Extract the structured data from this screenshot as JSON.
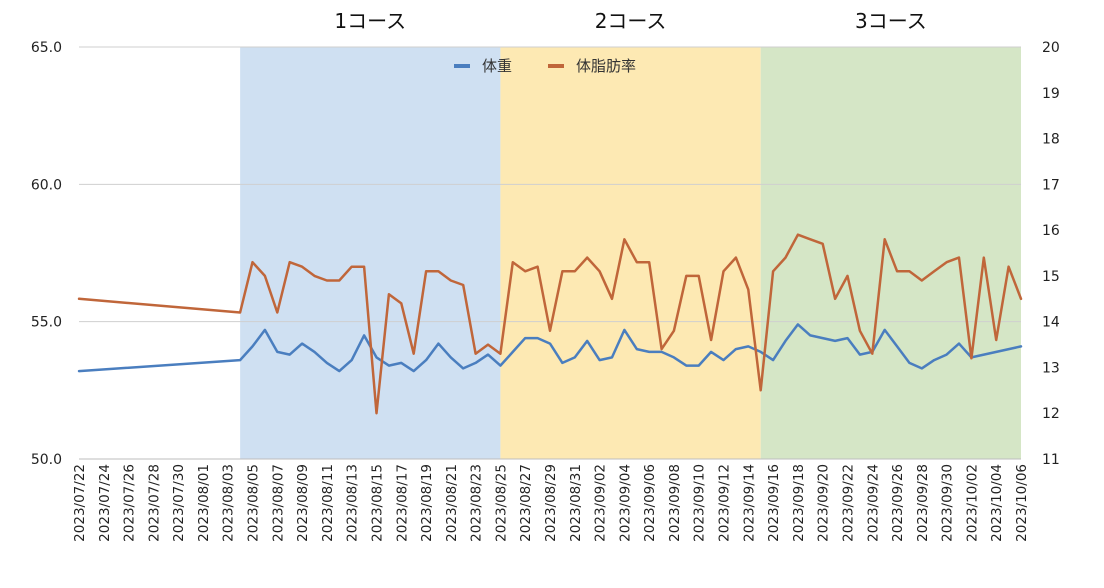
{
  "chart_data": {
    "type": "line",
    "bands": [
      {
        "label": "1コース",
        "from": "2023/08/04",
        "to": "2023/08/25",
        "color": "#cfe0f2"
      },
      {
        "label": "2コース",
        "from": "2023/08/25",
        "to": "2023/09/15",
        "color": "#fde9b3"
      },
      {
        "label": "3コース",
        "from": "2023/09/15",
        "to": "2023/10/06",
        "color": "#d5e6c6"
      }
    ],
    "x_ticks": [
      "2023/07/22",
      "2023/07/24",
      "2023/07/26",
      "2023/07/28",
      "2023/07/30",
      "2023/08/01",
      "2023/08/03",
      "2023/08/05",
      "2023/08/07",
      "2023/08/09",
      "2023/08/11",
      "2023/08/13",
      "2023/08/15",
      "2023/08/17",
      "2023/08/19",
      "2023/08/21",
      "2023/08/23",
      "2023/08/25",
      "2023/08/27",
      "2023/08/29",
      "2023/08/31",
      "2023/09/02",
      "2023/09/04",
      "2023/09/06",
      "2023/09/08",
      "2023/09/10",
      "2023/09/12",
      "2023/09/14",
      "2023/09/16",
      "2023/09/18",
      "2023/09/20",
      "2023/09/22",
      "2023/09/24",
      "2023/09/26",
      "2023/09/28",
      "2023/09/30",
      "2023/10/02",
      "2023/10/04",
      "2023/10/06"
    ],
    "y_left": {
      "min": 50,
      "max": 65,
      "ticks": [
        "50.0",
        "55.0",
        "60.0",
        "65.0"
      ]
    },
    "y_right": {
      "min": 11,
      "max": 20,
      "ticks": [
        "11",
        "12",
        "13",
        "14",
        "15",
        "16",
        "17",
        "18",
        "19",
        "20"
      ]
    },
    "grid": true,
    "legend_position": "top-center",
    "series": [
      {
        "name": "体重",
        "axis": "left",
        "color": "#4a7ebf",
        "x": [
          "2023/07/22",
          "2023/08/04",
          "2023/08/05",
          "2023/08/06",
          "2023/08/07",
          "2023/08/08",
          "2023/08/09",
          "2023/08/10",
          "2023/08/11",
          "2023/08/12",
          "2023/08/13",
          "2023/08/14",
          "2023/08/15",
          "2023/08/16",
          "2023/08/17",
          "2023/08/18",
          "2023/08/19",
          "2023/08/20",
          "2023/08/21",
          "2023/08/22",
          "2023/08/23",
          "2023/08/24",
          "2023/08/25",
          "2023/08/26",
          "2023/08/27",
          "2023/08/28",
          "2023/08/29",
          "2023/08/30",
          "2023/08/31",
          "2023/09/01",
          "2023/09/02",
          "2023/09/03",
          "2023/09/04",
          "2023/09/05",
          "2023/09/06",
          "2023/09/07",
          "2023/09/08",
          "2023/09/09",
          "2023/09/10",
          "2023/09/11",
          "2023/09/12",
          "2023/09/13",
          "2023/09/14",
          "2023/09/15",
          "2023/09/16",
          "2023/09/17",
          "2023/09/18",
          "2023/09/19",
          "2023/09/20",
          "2023/09/21",
          "2023/09/22",
          "2023/09/23",
          "2023/09/24",
          "2023/09/25",
          "2023/09/26",
          "2023/09/27",
          "2023/09/28",
          "2023/09/29",
          "2023/09/30",
          "2023/10/01",
          "2023/10/02",
          "2023/10/06"
        ],
        "y": [
          53.2,
          53.6,
          54.1,
          54.7,
          53.9,
          53.8,
          54.2,
          53.9,
          53.5,
          53.2,
          53.6,
          54.5,
          53.7,
          53.4,
          53.5,
          53.2,
          53.6,
          54.2,
          53.7,
          53.3,
          53.5,
          53.8,
          53.4,
          53.9,
          54.4,
          54.4,
          54.2,
          53.5,
          53.7,
          54.3,
          53.6,
          53.7,
          54.7,
          54.0,
          53.9,
          53.9,
          53.7,
          53.4,
          53.4,
          53.9,
          53.6,
          54.0,
          54.1,
          53.9,
          53.6,
          54.3,
          54.9,
          54.5,
          54.4,
          54.3,
          54.4,
          53.8,
          53.9,
          54.7,
          54.1,
          53.5,
          53.3,
          53.6,
          53.8,
          54.2,
          53.7,
          54.1
        ]
      },
      {
        "name": "体脂肪率",
        "axis": "right",
        "color": "#c0663a",
        "x": [
          "2023/07/22",
          "2023/08/04",
          "2023/08/05",
          "2023/08/06",
          "2023/08/07",
          "2023/08/08",
          "2023/08/09",
          "2023/08/10",
          "2023/08/11",
          "2023/08/12",
          "2023/08/13",
          "2023/08/14",
          "2023/08/15",
          "2023/08/16",
          "2023/08/17",
          "2023/08/18",
          "2023/08/19",
          "2023/08/20",
          "2023/08/21",
          "2023/08/22",
          "2023/08/23",
          "2023/08/24",
          "2023/08/25",
          "2023/08/26",
          "2023/08/27",
          "2023/08/28",
          "2023/08/29",
          "2023/08/30",
          "2023/08/31",
          "2023/09/01",
          "2023/09/02",
          "2023/09/03",
          "2023/09/04",
          "2023/09/05",
          "2023/09/06",
          "2023/09/07",
          "2023/09/08",
          "2023/09/09",
          "2023/09/10",
          "2023/09/11",
          "2023/09/12",
          "2023/09/13",
          "2023/09/14",
          "2023/09/15",
          "2023/09/16",
          "2023/09/17",
          "2023/09/18",
          "2023/09/19",
          "2023/09/20",
          "2023/09/21",
          "2023/09/22",
          "2023/09/23",
          "2023/09/24",
          "2023/09/25",
          "2023/09/26",
          "2023/09/27",
          "2023/09/28",
          "2023/09/29",
          "2023/09/30",
          "2023/10/01",
          "2023/10/02",
          "2023/10/03",
          "2023/10/04",
          "2023/10/05",
          "2023/10/06"
        ],
        "y": [
          14.5,
          14.2,
          15.3,
          15.0,
          14.2,
          15.3,
          15.2,
          15.0,
          14.9,
          14.9,
          15.2,
          15.2,
          12.0,
          14.6,
          14.4,
          13.3,
          15.1,
          15.1,
          14.9,
          14.8,
          13.3,
          13.5,
          13.3,
          15.3,
          15.1,
          15.2,
          13.8,
          15.1,
          15.1,
          15.4,
          15.1,
          14.5,
          15.8,
          15.3,
          15.3,
          13.4,
          13.8,
          15.0,
          15.0,
          13.6,
          15.1,
          15.4,
          14.7,
          12.5,
          15.1,
          15.4,
          15.9,
          15.8,
          15.7,
          14.5,
          15.0,
          13.8,
          13.3,
          15.8,
          15.1,
          15.1,
          14.9,
          15.1,
          15.3,
          15.4,
          13.2,
          15.4,
          13.6,
          15.2,
          14.5
        ]
      }
    ]
  }
}
